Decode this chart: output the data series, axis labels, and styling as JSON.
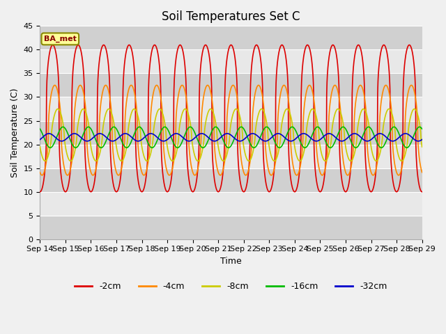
{
  "title": "Soil Temperatures Set C",
  "xlabel": "Time",
  "ylabel": "Soil Temperature (C)",
  "ylim": [
    0,
    45
  ],
  "yticks": [
    0,
    5,
    10,
    15,
    20,
    25,
    30,
    35,
    40,
    45
  ],
  "x_tick_labels": [
    "Sep 14",
    "Sep 15",
    "Sep 16",
    "Sep 17",
    "Sep 18",
    "Sep 19",
    "Sep 20",
    "Sep 21",
    "Sep 22",
    "Sep 23",
    "Sep 24",
    "Sep 25",
    "Sep 26",
    "Sep 27",
    "Sep 28",
    "Sep 29"
  ],
  "series_order": [
    "-2cm",
    "-4cm",
    "-8cm",
    "-16cm",
    "-32cm"
  ],
  "series": {
    "-2cm": {
      "color": "#dd0000",
      "lw": 1.2,
      "mean": 25.5,
      "amp": 15.5,
      "phase": 0.0,
      "shape": 3.0
    },
    "-4cm": {
      "color": "#ff8800",
      "lw": 1.2,
      "mean": 23.0,
      "amp": 9.5,
      "phase": 0.08,
      "shape": 2.0
    },
    "-8cm": {
      "color": "#cccc00",
      "lw": 1.2,
      "mean": 22.0,
      "amp": 5.5,
      "phase": 0.2,
      "shape": 1.5
    },
    "-16cm": {
      "color": "#00bb00",
      "lw": 1.2,
      "mean": 21.5,
      "amp": 2.2,
      "phase": 0.4,
      "shape": 1.0
    },
    "-32cm": {
      "color": "#0000cc",
      "lw": 1.2,
      "mean": 21.5,
      "amp": 0.8,
      "phase": 0.85,
      "shape": 1.0
    }
  },
  "legend_labels": [
    "-2cm",
    "-4cm",
    "-8cm",
    "-16cm",
    "-32cm"
  ],
  "legend_colors": [
    "#dd0000",
    "#ff8800",
    "#cccc00",
    "#00bb00",
    "#0000cc"
  ],
  "annotation_text": "BA_met",
  "bg_bands": [
    [
      0,
      5,
      "#d0d0d0"
    ],
    [
      5,
      10,
      "#e8e8e8"
    ],
    [
      10,
      15,
      "#d0d0d0"
    ],
    [
      15,
      20,
      "#e8e8e8"
    ],
    [
      20,
      25,
      "#d0d0d0"
    ],
    [
      25,
      30,
      "#e8e8e8"
    ],
    [
      30,
      35,
      "#d0d0d0"
    ],
    [
      35,
      40,
      "#e8e8e8"
    ],
    [
      40,
      45,
      "#d0d0d0"
    ]
  ],
  "grid_color": "#ffffff",
  "title_fontsize": 12,
  "label_fontsize": 9,
  "tick_fontsize": 8
}
